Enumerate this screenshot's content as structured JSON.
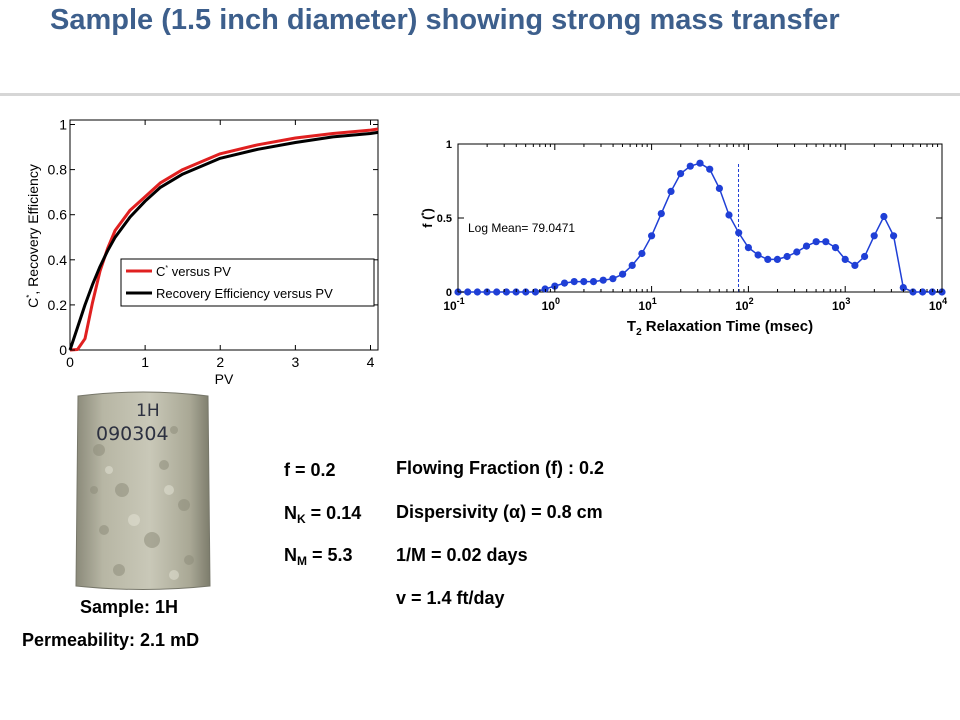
{
  "title": "Sample (1.5 inch diameter) showing strong mass transfer",
  "left_chart": {
    "ylabel_prefix": "C",
    "ylabel_sup": "*",
    "ylabel_rest": ", Recovery Efficiency",
    "xlabel": "PV",
    "legend_c_prefix": "C",
    "legend_c_sup": "*",
    "legend_c_rest": " versus PV",
    "legend_re": "Recovery Efficiency versus PV",
    "c_color": "#e02020",
    "re_color": "#000000"
  },
  "right_chart": {
    "ylabel_prefix": "f (",
    "ylabel_sup": "*",
    "ylabel_suffix": ")",
    "xlabel_prefix": "T",
    "xlabel_sub": "2",
    "xlabel_rest": " Relaxation Time (msec)",
    "annotation": "Log Mean= 79.0471",
    "line_color": "#1f3fd6"
  },
  "chart_data": [
    {
      "type": "line",
      "xlabel": "PV",
      "ylabel": "C*, Recovery Efficiency",
      "xlim": [
        0,
        4.1
      ],
      "ylim": [
        0,
        1.02
      ],
      "x_ticks": [
        "0",
        "1",
        "2",
        "3",
        "4"
      ],
      "y_ticks": [
        "0",
        "0.2",
        "0.4",
        "0.6",
        "0.8",
        "1"
      ],
      "legend_position": "lower-right",
      "grid": false,
      "series": [
        {
          "name": "C* versus PV",
          "x": [
            0,
            0.1,
            0.2,
            0.3,
            0.4,
            0.5,
            0.6,
            0.8,
            1.0,
            1.2,
            1.5,
            2.0,
            2.5,
            3.0,
            3.5,
            4.0,
            4.1
          ],
          "y": [
            0,
            0.002,
            0.05,
            0.21,
            0.35,
            0.45,
            0.53,
            0.62,
            0.68,
            0.74,
            0.8,
            0.87,
            0.91,
            0.94,
            0.96,
            0.975,
            0.98
          ]
        },
        {
          "name": "Recovery Efficiency versus PV",
          "x": [
            0,
            0.1,
            0.2,
            0.3,
            0.4,
            0.5,
            0.6,
            0.8,
            1.0,
            1.2,
            1.5,
            2.0,
            2.5,
            3.0,
            3.5,
            4.0,
            4.1
          ],
          "y": [
            0,
            0.1,
            0.2,
            0.29,
            0.37,
            0.44,
            0.5,
            0.59,
            0.66,
            0.72,
            0.78,
            0.85,
            0.89,
            0.92,
            0.945,
            0.96,
            0.965
          ]
        }
      ]
    },
    {
      "type": "line",
      "xlabel": "T2 Relaxation Time (msec)",
      "ylabel": "f (*)",
      "x_scale": "log",
      "xlim": [
        0.1,
        10000
      ],
      "ylim": [
        0,
        1
      ],
      "x_ticks": [
        "10^-1",
        "10^0",
        "10^1",
        "10^2",
        "10^3",
        "10^4"
      ],
      "y_ticks": [
        "0",
        "0.5",
        "1"
      ],
      "log_mean_marker": 79.0471,
      "series": [
        {
          "name": "",
          "x": [
            0.1,
            0.1259,
            0.1585,
            0.1995,
            0.2512,
            0.3162,
            0.3981,
            0.5012,
            0.631,
            0.7943,
            1.0,
            1.259,
            1.585,
            1.995,
            2.512,
            3.162,
            3.981,
            5.012,
            6.31,
            7.943,
            10.0,
            12.59,
            15.85,
            19.95,
            25.12,
            31.62,
            39.81,
            50.12,
            63.1,
            79.43,
            100.0,
            125.9,
            158.5,
            199.5,
            251.2,
            316.2,
            398.1,
            501.2,
            631.0,
            794.3,
            1000.0,
            1259.0,
            1585.0,
            1995.0,
            2512.0,
            3162.0,
            3981.0,
            5012.0,
            6310.0,
            7943.0,
            10000.0
          ],
          "y": [
            0,
            0,
            0,
            0,
            0,
            0,
            0,
            0,
            0,
            0.02,
            0.04,
            0.06,
            0.07,
            0.07,
            0.07,
            0.08,
            0.09,
            0.12,
            0.18,
            0.26,
            0.38,
            0.53,
            0.68,
            0.8,
            0.85,
            0.87,
            0.83,
            0.7,
            0.52,
            0.4,
            0.3,
            0.25,
            0.22,
            0.22,
            0.24,
            0.27,
            0.31,
            0.34,
            0.34,
            0.3,
            0.22,
            0.18,
            0.24,
            0.38,
            0.51,
            0.38,
            0.03,
            0,
            0,
            0,
            0
          ]
        }
      ]
    }
  ],
  "photo": {
    "label_line1": "1H",
    "label_line2": "090304"
  },
  "captions": {
    "sample": "Sample: 1H",
    "permeability": "Permeability:  2.1 mD"
  },
  "params": {
    "f_text": "f = 0.2",
    "nk_prefix": "N",
    "nk_sub": "K",
    "nk_value": " = 0.14",
    "nm_prefix": "N",
    "nm_sub": "M",
    "nm_value": " = 5.3"
  },
  "results": {
    "flowing_fraction": "Flowing Fraction (f) : 0.2",
    "dispersivity": "Dispersivity (α) = 0.8 cm",
    "one_over_m": "1/M  = 0.02 days",
    "velocity": "v  = 1.4 ft/day"
  }
}
